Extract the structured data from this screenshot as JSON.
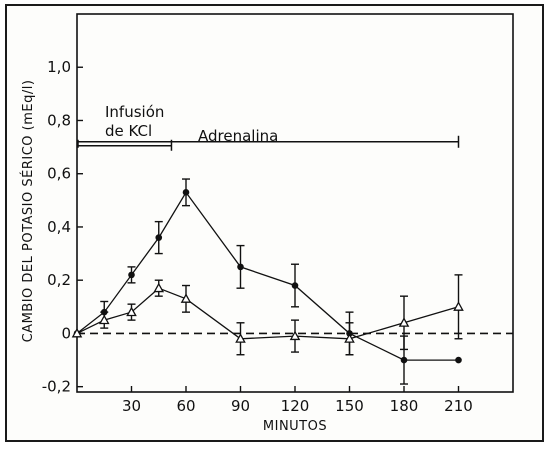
{
  "chart_data": {
    "type": "line",
    "xlabel": "MINUTOS",
    "ylabel": "CAMBIO DEL POTASIO SÉRICO (mEq/l)",
    "x_ticks": [
      30,
      60,
      90,
      120,
      150,
      180,
      210
    ],
    "y_ticks": [
      "-0,2",
      "0",
      "0,2",
      "0,4",
      "0,6",
      "0,8",
      "1,0"
    ],
    "y_tick_values": [
      -0.2,
      0,
      0.2,
      0.4,
      0.6,
      0.8,
      1.0
    ],
    "xlim": [
      0,
      240
    ],
    "ylim": [
      -0.22,
      1.2
    ],
    "grid": false,
    "series": [
      {
        "marker": "filled-circle",
        "color": "#111111",
        "points": [
          {
            "x": 0,
            "y": 0,
            "err": 0
          },
          {
            "x": 15,
            "y": 0.08,
            "err": 0.04
          },
          {
            "x": 30,
            "y": 0.22,
            "err": 0.03
          },
          {
            "x": 45,
            "y": 0.36,
            "err": 0.06
          },
          {
            "x": 60,
            "y": 0.53,
            "err": 0.05
          },
          {
            "x": 90,
            "y": 0.25,
            "err": 0.08
          },
          {
            "x": 120,
            "y": 0.18,
            "err": 0.08
          },
          {
            "x": 150,
            "y": 0.0,
            "err": 0.08
          },
          {
            "x": 180,
            "y": -0.1,
            "err": 0.09
          },
          {
            "x": 210,
            "y": -0.1,
            "err": 0.0
          }
        ]
      },
      {
        "marker": "open-triangle",
        "color": "#111111",
        "points": [
          {
            "x": 0,
            "y": 0,
            "err": 0
          },
          {
            "x": 15,
            "y": 0.05,
            "err": 0.03
          },
          {
            "x": 30,
            "y": 0.08,
            "err": 0.03
          },
          {
            "x": 45,
            "y": 0.17,
            "err": 0.03
          },
          {
            "x": 60,
            "y": 0.13,
            "err": 0.05
          },
          {
            "x": 90,
            "y": -0.02,
            "err": 0.06
          },
          {
            "x": 120,
            "y": -0.01,
            "err": 0.06
          },
          {
            "x": 150,
            "y": -0.02,
            "err": 0.06
          },
          {
            "x": 180,
            "y": 0.04,
            "err": 0.1
          },
          {
            "x": 210,
            "y": 0.1,
            "err": 0.12
          }
        ]
      }
    ],
    "reference_line": {
      "y": 0,
      "style": "dashed"
    },
    "annotations": {
      "infusion_line1": "Infusión",
      "infusion_line2": "de KCl",
      "adrenaline": "Adrenalina",
      "infusion_span": [
        0,
        52
      ],
      "adrenaline_span": [
        0,
        210
      ]
    }
  }
}
